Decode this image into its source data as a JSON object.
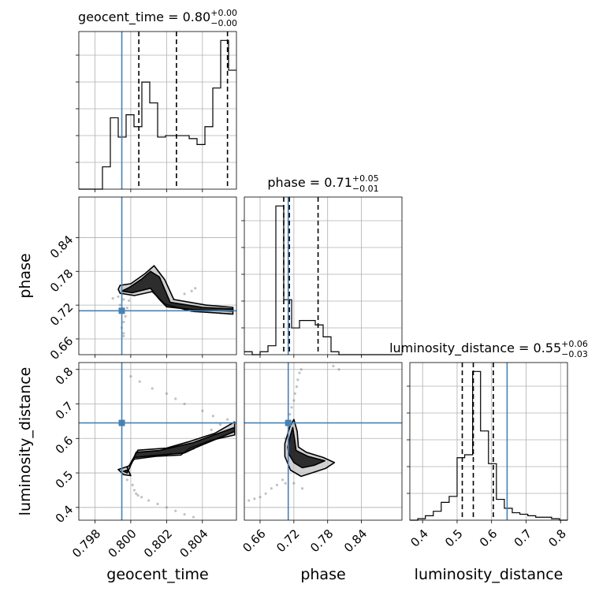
{
  "chart_data": {
    "type": "corner",
    "parameters": [
      {
        "name": "geocent_time",
        "label": "geocent_time",
        "title_prefix": "geocent_time = ",
        "title_value": "0.80",
        "title_plus": "+0.00",
        "title_minus": "−0.00",
        "range": [
          0.7971,
          0.8059
        ],
        "ticks": [
          0.798,
          0.8,
          0.802,
          0.804
        ],
        "tick_labels": [
          "0.798",
          "0.800",
          "0.802",
          "0.804"
        ],
        "truth": 0.7995,
        "quantiles": [
          0.80045,
          0.80255,
          0.8054
        ],
        "hist": {
          "edges": [
            0.7971,
            0.79754,
            0.79798,
            0.79842,
            0.79886,
            0.7993,
            0.79974,
            0.80018,
            0.80062,
            0.80106,
            0.8015,
            0.80194,
            0.80238,
            0.80282,
            0.80326,
            0.8037,
            0.80414,
            0.80458,
            0.80502,
            0.80546,
            0.8059
          ],
          "counts": [
            0,
            0,
            0,
            0.15,
            0.48,
            0.35,
            0.5,
            0.42,
            0.72,
            0.58,
            0.35,
            0.36,
            0.36,
            0.36,
            0.34,
            0.3,
            0.42,
            0.68,
            1.0,
            0.8
          ]
        }
      },
      {
        "name": "phase",
        "label": "phase",
        "title_prefix": "phase = ",
        "title_value": "0.71",
        "title_plus": "+0.05",
        "title_minus": "−0.01",
        "range": [
          0.632,
          0.912
        ],
        "ticks": [
          0.66,
          0.72,
          0.78,
          0.84
        ],
        "tick_labels": [
          "0.66",
          "0.72",
          "0.78",
          "0.84"
        ],
        "truth": 0.71,
        "quantiles": [
          0.702,
          0.712,
          0.763
        ],
        "hist": {
          "edges": [
            0.632,
            0.646,
            0.66,
            0.674,
            0.688,
            0.702,
            0.716,
            0.73,
            0.744,
            0.758,
            0.772,
            0.786,
            0.8,
            0.814,
            0.828,
            0.842,
            0.856,
            0.87,
            0.884,
            0.898,
            0.912
          ],
          "counts": [
            0.02,
            0.0,
            0.02,
            0.06,
            1.0,
            0.37,
            0.18,
            0.23,
            0.23,
            0.2,
            0.12,
            0.02,
            0.0,
            0.0,
            0.0,
            0.0,
            0.0,
            0.0,
            0.0,
            0.0
          ]
        }
      },
      {
        "name": "luminosity_distance",
        "label": "luminosity_distance",
        "title_prefix": "luminosity_distance = ",
        "title_value": "0.55",
        "title_plus": "+0.06",
        "title_minus": "−0.03",
        "range": [
          0.363,
          0.82
        ],
        "ticks": [
          0.4,
          0.5,
          0.6,
          0.7,
          0.8
        ],
        "tick_labels": [
          "0.4",
          "0.5",
          "0.6",
          "0.7",
          "0.8"
        ],
        "truth": 0.645,
        "quantiles": [
          0.515,
          0.547,
          0.605
        ],
        "hist": {
          "edges": [
            0.363,
            0.386,
            0.408,
            0.431,
            0.454,
            0.477,
            0.5,
            0.522,
            0.545,
            0.568,
            0.591,
            0.614,
            0.637,
            0.66,
            0.682,
            0.705,
            0.728,
            0.751,
            0.774,
            0.797,
            0.82
          ],
          "counts": [
            0,
            0.01,
            0.03,
            0.06,
            0.12,
            0.16,
            0.42,
            0.44,
            1.0,
            0.6,
            0.38,
            0.14,
            0.08,
            0.05,
            0.04,
            0.03,
            0.02,
            0.02,
            0.01,
            0
          ]
        }
      }
    ],
    "pairs": [
      {
        "x_param": "geocent_time",
        "y_param": "phase",
        "contours": [
          [
            [
              0.7993,
              0.748
            ],
            [
              0.7994,
              0.741
            ],
            [
              0.8002,
              0.737
            ],
            [
              0.8012,
              0.744
            ],
            [
              0.8019,
              0.722
            ],
            [
              0.8034,
              0.709
            ],
            [
              0.8048,
              0.706
            ],
            [
              0.8057,
              0.704
            ],
            [
              0.8057,
              0.716
            ],
            [
              0.8042,
              0.72
            ],
            [
              0.8024,
              0.73
            ],
            [
              0.8019,
              0.765
            ],
            [
              0.8013,
              0.79
            ],
            [
              0.8008,
              0.776
            ],
            [
              0.8,
              0.758
            ],
            [
              0.7994,
              0.755
            ]
          ],
          [
            [
              0.7995,
              0.745
            ],
            [
              0.8001,
              0.742
            ],
            [
              0.8011,
              0.75
            ],
            [
              0.8016,
              0.73
            ],
            [
              0.802,
              0.717
            ],
            [
              0.8035,
              0.712
            ],
            [
              0.8057,
              0.709
            ],
            [
              0.8057,
              0.713
            ],
            [
              0.804,
              0.716
            ],
            [
              0.8022,
              0.725
            ],
            [
              0.8016,
              0.77
            ],
            [
              0.8011,
              0.78
            ],
            [
              0.8006,
              0.766
            ],
            [
              0.7999,
              0.751
            ]
          ]
        ],
        "samples": [
          [
            0.7995,
            0.74
          ],
          [
            0.7996,
            0.73
          ],
          [
            0.7994,
            0.72
          ],
          [
            0.7996,
            0.71
          ],
          [
            0.7997,
            0.7
          ],
          [
            0.7996,
            0.69
          ],
          [
            0.7995,
            0.68
          ],
          [
            0.7996,
            0.67
          ],
          [
            0.7996,
            0.665
          ],
          [
            0.7998,
            0.715
          ],
          [
            0.8002,
            0.746
          ],
          [
            0.8006,
            0.76
          ],
          [
            0.801,
            0.775
          ],
          [
            0.8015,
            0.78
          ],
          [
            0.8018,
            0.75
          ],
          [
            0.802,
            0.732
          ],
          [
            0.8026,
            0.716
          ],
          [
            0.803,
            0.711
          ],
          [
            0.8036,
            0.709
          ],
          [
            0.8044,
            0.708
          ],
          [
            0.805,
            0.706
          ],
          [
            0.8055,
            0.705
          ],
          [
            0.8024,
            0.73
          ],
          [
            0.803,
            0.74
          ],
          [
            0.8034,
            0.745
          ],
          [
            0.8036,
            0.75
          ],
          [
            0.799,
            0.732
          ],
          [
            0.7993,
            0.735
          ],
          [
            0.7999,
            0.728
          ]
        ]
      },
      {
        "x_param": "geocent_time",
        "y_param": "luminosity_distance",
        "contours": [
          [
            [
              0.7993,
              0.51
            ],
            [
              0.7996,
              0.495
            ],
            [
              0.8,
              0.492
            ],
            [
              0.7998,
              0.515
            ],
            [
              0.8002,
              0.54
            ],
            [
              0.8014,
              0.548
            ],
            [
              0.8028,
              0.552
            ],
            [
              0.8033,
              0.572
            ],
            [
              0.8045,
              0.595
            ],
            [
              0.8058,
              0.61
            ],
            [
              0.8058,
              0.648
            ],
            [
              0.8047,
              0.615
            ],
            [
              0.8032,
              0.59
            ],
            [
              0.802,
              0.572
            ],
            [
              0.8004,
              0.566
            ],
            [
              0.7999,
              0.52
            ]
          ],
          [
            [
              0.7996,
              0.505
            ],
            [
              0.7998,
              0.5
            ],
            [
              0.8002,
              0.545
            ],
            [
              0.8016,
              0.552
            ],
            [
              0.803,
              0.558
            ],
            [
              0.8037,
              0.575
            ],
            [
              0.8058,
              0.62
            ],
            [
              0.8058,
              0.632
            ],
            [
              0.8035,
              0.588
            ],
            [
              0.8016,
              0.565
            ],
            [
              0.8003,
              0.56
            ],
            [
              0.7999,
              0.51
            ]
          ]
        ],
        "samples": [
          [
            0.7996,
            0.505
          ],
          [
            0.7998,
            0.48
          ],
          [
            0.8001,
            0.465
          ],
          [
            0.8002,
            0.45
          ],
          [
            0.8003,
            0.44
          ],
          [
            0.8004,
            0.435
          ],
          [
            0.8006,
            0.43
          ],
          [
            0.801,
            0.42
          ],
          [
            0.8015,
            0.41
          ],
          [
            0.802,
            0.4
          ],
          [
            0.8025,
            0.39
          ],
          [
            0.803,
            0.38
          ],
          [
            0.8035,
            0.372
          ],
          [
            0.8045,
            0.625
          ],
          [
            0.805,
            0.64
          ],
          [
            0.8054,
            0.655
          ],
          [
            0.8046,
            0.665
          ],
          [
            0.804,
            0.68
          ],
          [
            0.803,
            0.7
          ],
          [
            0.8025,
            0.715
          ],
          [
            0.802,
            0.73
          ],
          [
            0.8012,
            0.745
          ],
          [
            0.8005,
            0.765
          ],
          [
            0.8,
            0.78
          ],
          [
            0.8012,
            0.553
          ],
          [
            0.8022,
            0.56
          ],
          [
            0.8028,
            0.565
          ],
          [
            0.8035,
            0.57
          ],
          [
            0.8008,
            0.548
          ],
          [
            0.8018,
            0.555
          ]
        ]
      },
      {
        "x_param": "phase",
        "y_param": "luminosity_distance",
        "contours": [
          [
            [
              0.704,
              0.585
            ],
            [
              0.713,
              0.635
            ],
            [
              0.72,
              0.655
            ],
            [
              0.726,
              0.62
            ],
            [
              0.728,
              0.575
            ],
            [
              0.742,
              0.56
            ],
            [
              0.772,
              0.545
            ],
            [
              0.792,
              0.53
            ],
            [
              0.776,
              0.513
            ],
            [
              0.752,
              0.5
            ],
            [
              0.733,
              0.49
            ],
            [
              0.714,
              0.508
            ],
            [
              0.704,
              0.548
            ]
          ],
          [
            [
              0.709,
              0.575
            ],
            [
              0.714,
              0.61
            ],
            [
              0.718,
              0.632
            ],
            [
              0.721,
              0.6
            ],
            [
              0.724,
              0.565
            ],
            [
              0.745,
              0.548
            ],
            [
              0.775,
              0.535
            ],
            [
              0.756,
              0.522
            ],
            [
              0.735,
              0.515
            ],
            [
              0.72,
              0.53
            ],
            [
              0.711,
              0.555
            ]
          ]
        ],
        "samples": [
          [
            0.71,
            0.65
          ],
          [
            0.713,
            0.67
          ],
          [
            0.716,
            0.69
          ],
          [
            0.72,
            0.71
          ],
          [
            0.722,
            0.73
          ],
          [
            0.725,
            0.75
          ],
          [
            0.727,
            0.77
          ],
          [
            0.73,
            0.79
          ],
          [
            0.733,
            0.8
          ],
          [
            0.7,
            0.48
          ],
          [
            0.69,
            0.465
          ],
          [
            0.68,
            0.455
          ],
          [
            0.67,
            0.44
          ],
          [
            0.66,
            0.43
          ],
          [
            0.65,
            0.425
          ],
          [
            0.64,
            0.42
          ],
          [
            0.705,
            0.47
          ],
          [
            0.72,
            0.47
          ],
          [
            0.735,
            0.455
          ],
          [
            0.705,
            0.6
          ],
          [
            0.71,
            0.62
          ],
          [
            0.718,
            0.64
          ],
          [
            0.8,
            0.8
          ],
          [
            0.79,
            0.81
          ],
          [
            0.712,
            0.58
          ],
          [
            0.716,
            0.57
          ],
          [
            0.722,
            0.59
          ]
        ]
      }
    ]
  }
}
